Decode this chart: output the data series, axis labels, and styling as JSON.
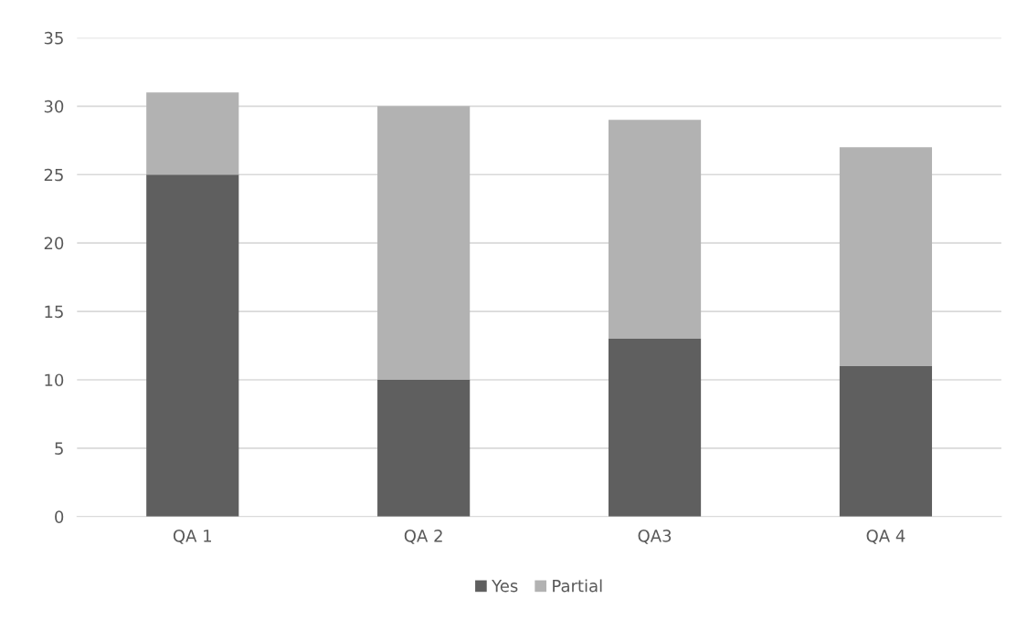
{
  "chart_data": {
    "type": "bar",
    "stacked": true,
    "categories": [
      "QA 1",
      "QA 2",
      "QA3",
      "QA 4"
    ],
    "series": [
      {
        "name": "Yes",
        "color": "#5f5f5f",
        "values": [
          25,
          10,
          13,
          11
        ]
      },
      {
        "name": "Partial",
        "color": "#b2b2b2",
        "values": [
          6,
          20,
          16,
          16
        ]
      }
    ],
    "ylim": [
      0,
      35
    ],
    "yticks": [
      0,
      5,
      10,
      15,
      20,
      25,
      30,
      35
    ],
    "grid": "y",
    "legend": "bottom"
  }
}
